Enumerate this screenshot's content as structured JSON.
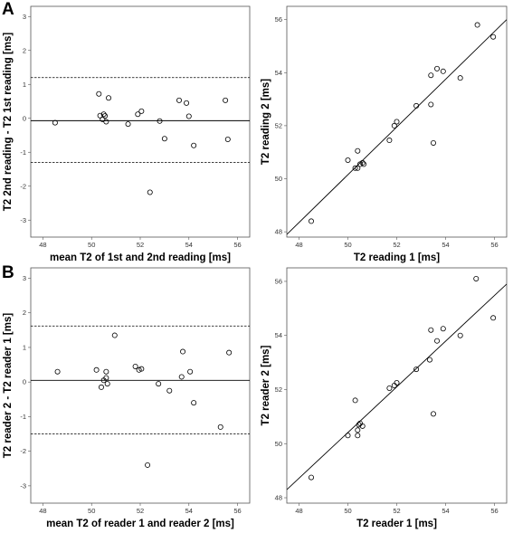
{
  "panel_labels": {
    "a": "A",
    "b": "B"
  },
  "chart_data": [
    {
      "id": "A-left",
      "type": "scatter",
      "xlabel": "mean T2 of 1st and 2nd reading [ms]",
      "ylabel": "T2 2nd reading - T2 1st reading [ms]",
      "xlim": [
        47.5,
        56.5
      ],
      "ylim": [
        -3.5,
        3.3
      ],
      "xticks": [
        48,
        50,
        52,
        54,
        56
      ],
      "yticks": [
        -3,
        -2,
        -1,
        0,
        1,
        2,
        3
      ],
      "hlines": [
        {
          "y": -0.07,
          "style": "solid"
        },
        {
          "y": 1.2,
          "style": "dashed"
        },
        {
          "y": -1.3,
          "style": "dashed"
        }
      ],
      "x": [
        48.5,
        50.3,
        50.35,
        50.45,
        50.5,
        50.55,
        50.6,
        50.7,
        51.5,
        51.9,
        52.05,
        52.4,
        52.8,
        53.0,
        53.6,
        53.9,
        54.0,
        54.2,
        55.5,
        55.6
      ],
      "y": [
        -0.13,
        0.72,
        0.08,
        -0.03,
        0.12,
        0.07,
        -0.1,
        0.6,
        -0.17,
        0.12,
        0.21,
        -2.18,
        -0.08,
        -0.6,
        0.53,
        0.45,
        0.06,
        -0.8,
        0.53,
        -0.62
      ]
    },
    {
      "id": "A-right",
      "type": "scatter",
      "xlabel": "T2 reading 1 [ms]",
      "ylabel": "T2 reading 2 [ms]",
      "xlim": [
        47.5,
        56.5
      ],
      "ylim": [
        47.8,
        56.5
      ],
      "xticks": [
        48,
        50,
        52,
        54,
        56
      ],
      "yticks": [
        48,
        50,
        52,
        54,
        56
      ],
      "fit_line": {
        "x": [
          47.5,
          56.5
        ],
        "y": [
          47.9,
          56.0
        ]
      },
      "x": [
        48.5,
        50.0,
        50.3,
        50.4,
        50.5,
        50.6,
        50.65,
        50.4,
        51.7,
        51.9,
        52.0,
        52.8,
        53.4,
        53.4,
        53.5,
        53.65,
        53.9,
        54.6,
        55.3,
        55.95
      ],
      "y": [
        48.4,
        50.7,
        50.4,
        50.4,
        50.55,
        50.6,
        50.55,
        51.05,
        51.45,
        52.0,
        52.15,
        52.75,
        52.8,
        53.9,
        51.35,
        54.15,
        54.05,
        53.8,
        55.8,
        55.35
      ]
    },
    {
      "id": "B-left",
      "type": "scatter",
      "xlabel": "mean T2 of reader 1 and reader 2 [ms]",
      "ylabel": "T2 reader 2 - T2 reader 1 [ms]",
      "xlim": [
        47.5,
        56.5
      ],
      "ylim": [
        -3.5,
        3.3
      ],
      "xticks": [
        48,
        50,
        52,
        54,
        56
      ],
      "yticks": [
        -3,
        -2,
        -1,
        0,
        1,
        2,
        3
      ],
      "hlines": [
        {
          "y": 0.05,
          "style": "solid"
        },
        {
          "y": 1.62,
          "style": "dashed"
        },
        {
          "y": -1.5,
          "style": "dashed"
        }
      ],
      "x": [
        48.6,
        50.2,
        50.4,
        50.5,
        50.6,
        50.6,
        50.65,
        50.95,
        51.8,
        51.95,
        52.05,
        52.3,
        52.75,
        53.2,
        53.7,
        53.75,
        54.05,
        54.2,
        55.3,
        55.65
      ],
      "y": [
        0.3,
        0.35,
        -0.15,
        0.05,
        0.3,
        0.12,
        -0.05,
        1.35,
        0.45,
        0.35,
        0.38,
        -2.4,
        -0.05,
        -0.25,
        0.15,
        0.88,
        0.3,
        -0.6,
        -1.3,
        0.85
      ]
    },
    {
      "id": "B-right",
      "type": "scatter",
      "xlabel": "T2 reader 1 [ms]",
      "ylabel": "T2 reader 2 [ms]",
      "xlim": [
        47.5,
        56.5
      ],
      "ylim": [
        47.8,
        56.5
      ],
      "xticks": [
        48,
        50,
        52,
        54,
        56
      ],
      "yticks": [
        48,
        50,
        52,
        54,
        56
      ],
      "fit_line": {
        "x": [
          47.5,
          56.5
        ],
        "y": [
          48.3,
          55.9
        ]
      },
      "x": [
        48.5,
        50.0,
        50.3,
        50.4,
        50.45,
        50.5,
        50.6,
        50.4,
        51.7,
        51.9,
        52.0,
        52.8,
        53.35,
        53.4,
        53.5,
        53.65,
        53.9,
        54.6,
        55.25,
        55.95
      ],
      "y": [
        48.75,
        50.3,
        51.6,
        50.5,
        50.7,
        50.75,
        50.65,
        50.3,
        52.05,
        52.15,
        52.25,
        52.75,
        53.1,
        54.2,
        51.1,
        53.8,
        54.25,
        54.0,
        56.1,
        54.65
      ]
    }
  ]
}
